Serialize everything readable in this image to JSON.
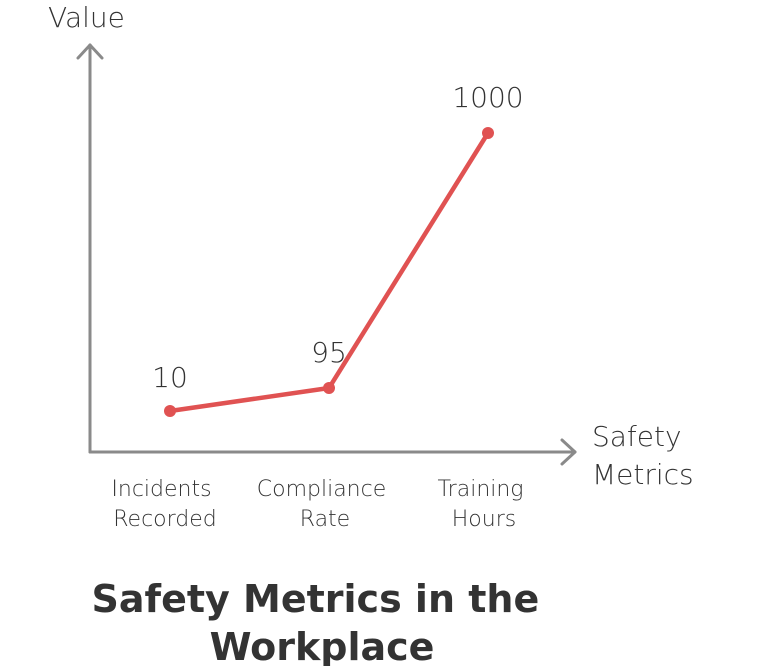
{
  "colors": {
    "series": "#e05252",
    "axis": "#8a8a8a",
    "text": "#333333"
  },
  "chart_data": {
    "type": "line",
    "title_lines": [
      "Safety Metrics in the",
      "Workplace"
    ],
    "ylabel": "Value",
    "xlabel_lines": [
      "Safety",
      "Metrics"
    ],
    "categories": [
      [
        "Incidents",
        "Recorded"
      ],
      [
        "Compliance",
        "Rate"
      ],
      [
        "Training",
        "Hours"
      ]
    ],
    "values": [
      10,
      95,
      1000
    ],
    "data_labels": [
      "10",
      "95",
      "1000"
    ],
    "grid": false,
    "legend": "none",
    "scale": "nonlinear"
  }
}
